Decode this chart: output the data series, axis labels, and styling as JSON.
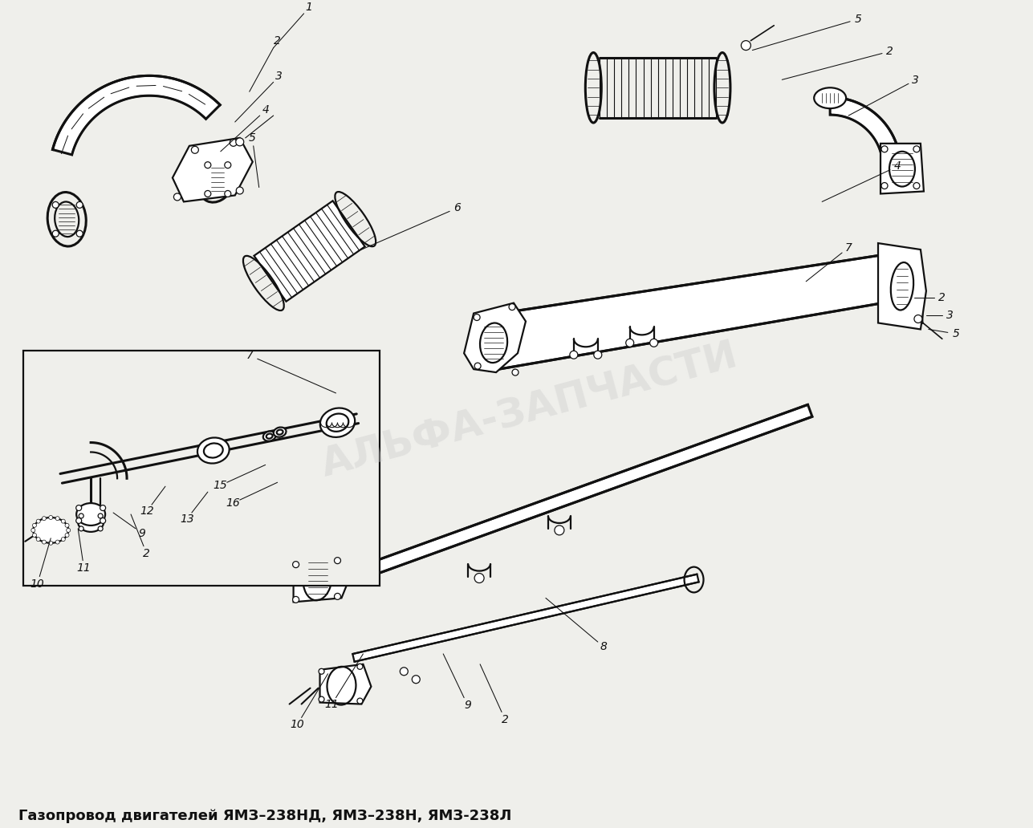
{
  "title_text": "Газопровод двигателей ЯМЗ–238НД, ЯМЗ–238Н, ЯМЗ-238Л",
  "bg_color": "#efefeb",
  "fig_width": 12.87,
  "fig_height": 10.32,
  "watermark_text": "АЛЬФА-ЗАПЧАСТИ",
  "watermark_color": "#cccccc",
  "watermark_alpha": 0.4,
  "watermark_fontsize": 36,
  "watermark_rotation": 15,
  "title_fontsize": 13,
  "line_color": "#111111"
}
